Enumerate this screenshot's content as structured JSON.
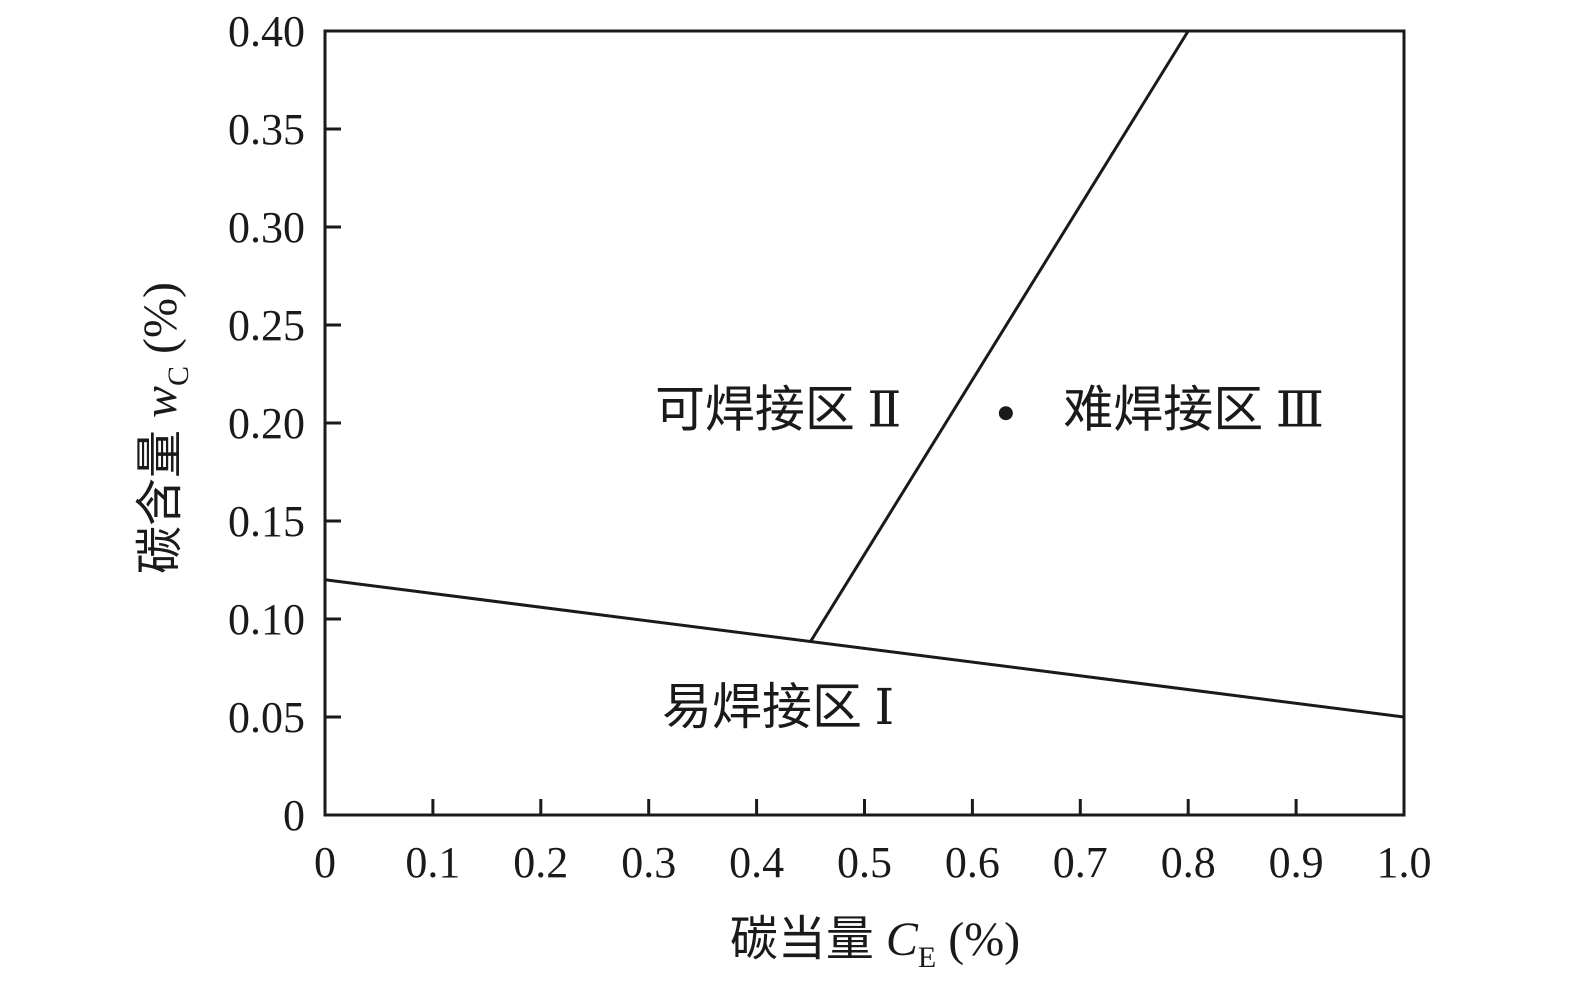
{
  "chart_data": {
    "type": "line",
    "title": "",
    "xlabel": {
      "prefix": "碳当量 ",
      "symbol": "C",
      "subscript": "E",
      "unit": " (%)"
    },
    "ylabel": {
      "prefix": "碳含量 ",
      "symbol": "w",
      "subscript": "C",
      "unit": " (%)"
    },
    "xlim": [
      0,
      1.0
    ],
    "ylim": [
      0,
      0.4
    ],
    "xticks": [
      0,
      0.1,
      0.2,
      0.3,
      0.4,
      0.5,
      0.6,
      0.7,
      0.8,
      0.9,
      1.0
    ],
    "xtick_labels": [
      "0",
      "0.1",
      "0.2",
      "0.3",
      "0.4",
      "0.5",
      "0.6",
      "0.7",
      "0.8",
      "0.9",
      "1.0"
    ],
    "yticks": [
      0,
      0.05,
      0.1,
      0.15,
      0.2,
      0.25,
      0.3,
      0.35,
      0.4
    ],
    "ytick_labels": [
      "0",
      "0.05",
      "0.10",
      "0.15",
      "0.20",
      "0.25",
      "0.30",
      "0.35",
      "0.40"
    ],
    "grid": false,
    "series": [
      {
        "x": [
          0,
          1.0
        ],
        "y": [
          0.12,
          0.05
        ]
      },
      {
        "x": [
          0.45,
          0.8
        ],
        "y": [
          0.0885,
          0.4
        ]
      }
    ],
    "regions": [
      {
        "label": "易焊接区 Ⅰ",
        "x": 0.42,
        "y": 0.055
      },
      {
        "label": "可焊接区 Ⅱ",
        "x": 0.42,
        "y": 0.207
      },
      {
        "label": "难焊接区 Ⅲ",
        "x": 0.805,
        "y": 0.207
      }
    ],
    "markers": [
      {
        "x": 0.631,
        "y": 0.205
      }
    ]
  }
}
